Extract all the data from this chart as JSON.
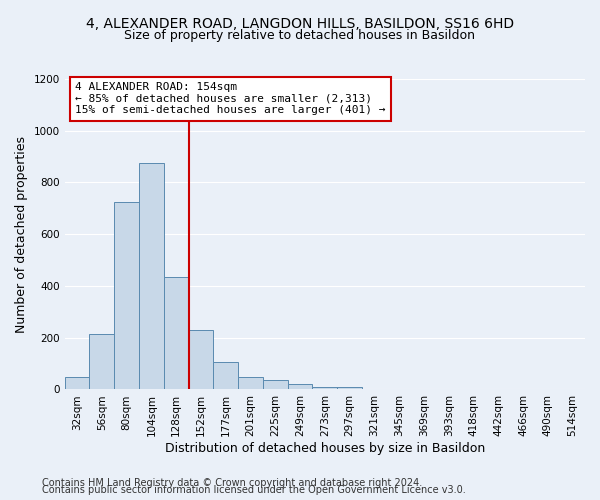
{
  "title": "4, ALEXANDER ROAD, LANGDON HILLS, BASILDON, SS16 6HD",
  "subtitle": "Size of property relative to detached houses in Basildon",
  "xlabel": "Distribution of detached houses by size in Basildon",
  "ylabel": "Number of detached properties",
  "bar_labels": [
    "32sqm",
    "56sqm",
    "80sqm",
    "104sqm",
    "128sqm",
    "152sqm",
    "177sqm",
    "201sqm",
    "225sqm",
    "249sqm",
    "273sqm",
    "297sqm",
    "321sqm",
    "345sqm",
    "369sqm",
    "393sqm",
    "418sqm",
    "442sqm",
    "466sqm",
    "490sqm",
    "514sqm"
  ],
  "bar_heights": [
    50,
    215,
    725,
    875,
    435,
    230,
    105,
    47,
    37,
    20,
    10,
    10,
    0,
    0,
    0,
    0,
    0,
    0,
    0,
    0,
    0
  ],
  "bar_color": "#c8d8e8",
  "bar_edge_color": "#5a8ab0",
  "background_color": "#eaf0f8",
  "grid_color": "#ffffff",
  "red_line_index": 5,
  "red_line_color": "#cc0000",
  "annotation_line1": "4 ALEXANDER ROAD: 154sqm",
  "annotation_line2": "← 85% of detached houses are smaller (2,313)",
  "annotation_line3": "15% of semi-detached houses are larger (401) →",
  "annotation_box_color": "#ffffff",
  "annotation_box_edge": "#cc0000",
  "ylim": [
    0,
    1200
  ],
  "yticks": [
    0,
    200,
    400,
    600,
    800,
    1000,
    1200
  ],
  "footer_line1": "Contains HM Land Registry data © Crown copyright and database right 2024.",
  "footer_line2": "Contains public sector information licensed under the Open Government Licence v3.0.",
  "title_fontsize": 10,
  "subtitle_fontsize": 9,
  "axis_label_fontsize": 9,
  "tick_fontsize": 7.5,
  "annotation_fontsize": 8,
  "footer_fontsize": 7
}
